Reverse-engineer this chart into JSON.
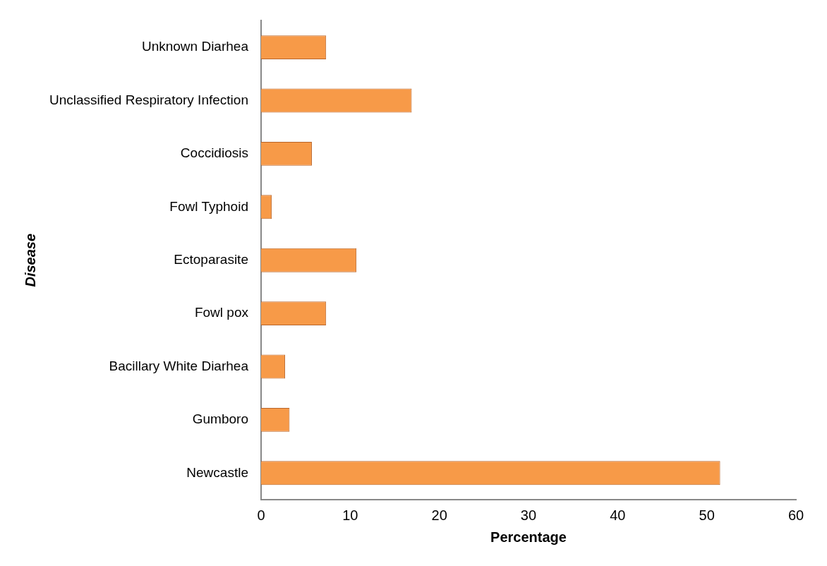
{
  "chart_data": {
    "type": "bar",
    "orientation": "horizontal",
    "xlabel": "Percentage",
    "ylabel": "Disease",
    "categories": [
      "Unknown Diarhea",
      "Unclassified Respiratory Infection",
      "Coccidiosis",
      "Fowl Typhoid",
      "Ectoparasite",
      "Fowl pox",
      "Bacillary White Diarhea",
      "Gumboro",
      "Newcastle"
    ],
    "values": [
      7.3,
      16.9,
      5.7,
      1.2,
      10.7,
      7.3,
      2.7,
      3.2,
      51.5
    ],
    "color": "#f79a48",
    "xlim": [
      0,
      60
    ],
    "xticks": [
      0,
      10,
      20,
      30,
      40,
      50,
      60
    ],
    "grid": false,
    "legend": false
  }
}
